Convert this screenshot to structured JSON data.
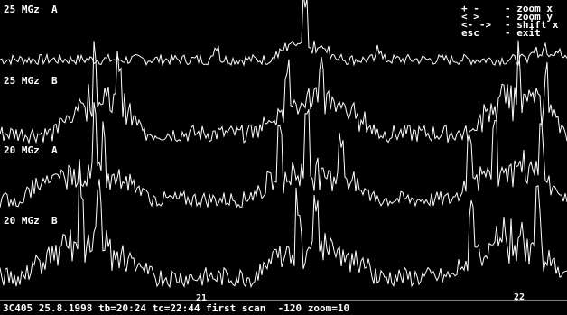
{
  "panels": [
    {
      "freq": "25 MGz",
      "channel": "A"
    },
    {
      "freq": "25 MGz",
      "channel": "B"
    },
    {
      "freq": "20 MGz",
      "channel": "A"
    },
    {
      "freq": "20 MGz",
      "channel": "B"
    }
  ],
  "help": [
    {
      "key": "+ -",
      "action": "- zoom x"
    },
    {
      "key": "< >",
      "action": "- zoom y"
    },
    {
      "key": "<- ->",
      "action": "- shift x"
    },
    {
      "key": "esc",
      "action": "- exit"
    }
  ],
  "footer": "3C405 25.8.1998 tb=20:24 tc=22:44 first scan  -120 zoom=10",
  "time_ticks": [
    "21",
    "22"
  ],
  "colors": {
    "background": "#000000",
    "trace": "#ffffff"
  }
}
